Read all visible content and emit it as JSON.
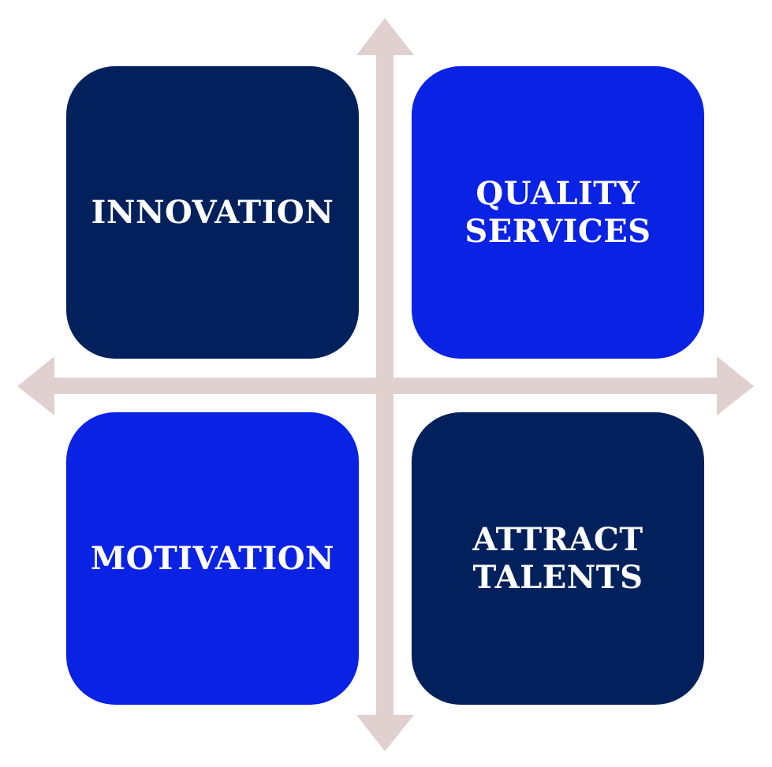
{
  "colors": {
    "axis": "#e0d0cf",
    "dark_navy": "#02215c",
    "royal_blue": "#0a22e3",
    "text": "#ffffff"
  },
  "quadrants": [
    {
      "position": "top-left",
      "label": "INNOVATION",
      "color": "#02215c"
    },
    {
      "position": "top-right",
      "label": "QUALITY\nSERVICES",
      "color": "#0a22e3"
    },
    {
      "position": "bottom-left",
      "label": "MOTIVATION",
      "color": "#0a22e3"
    },
    {
      "position": "bottom-right",
      "label": "ATTRACT\nTALENTS",
      "color": "#02215c"
    }
  ],
  "axes": {
    "arrows": [
      "up-arrow",
      "down-arrow",
      "left-arrow",
      "right-arrow"
    ]
  }
}
